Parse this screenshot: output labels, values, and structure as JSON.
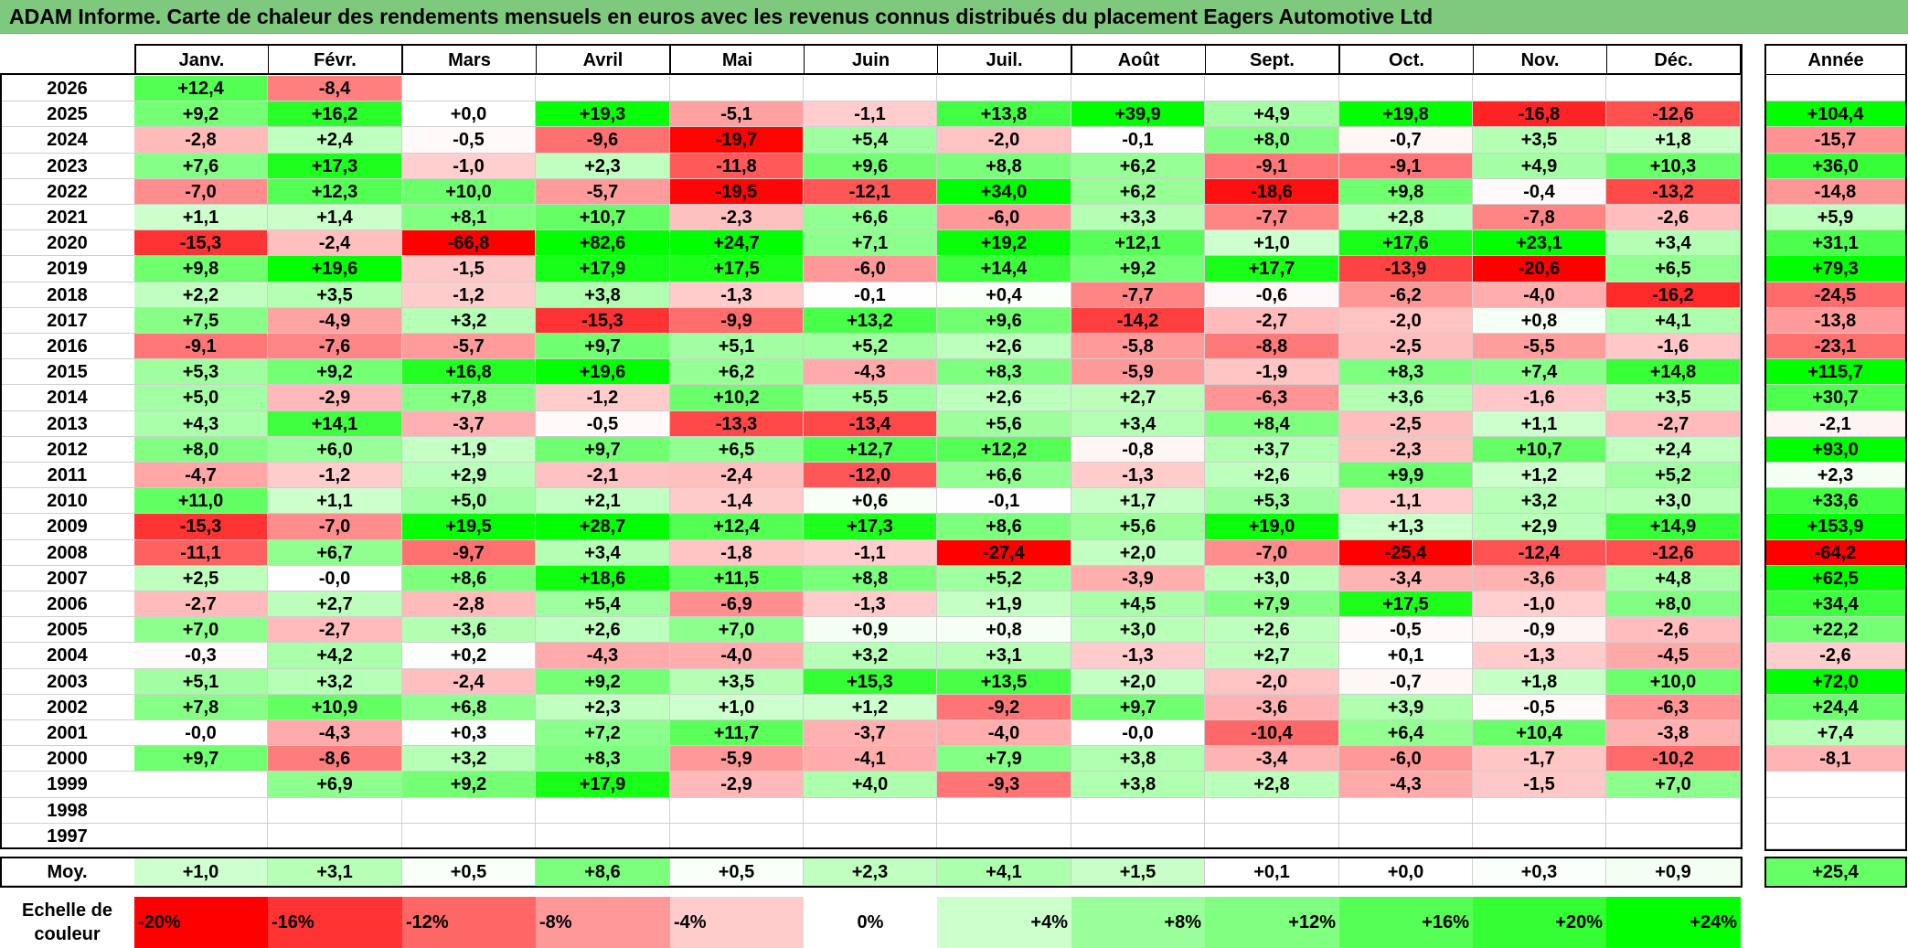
{
  "title": "ADAM Informe. Carte de chaleur des rendements mensuels en euros avec les revenus connus distribués du placement Eagers Automotive Ltd",
  "chart_data": {
    "type": "heatmap",
    "months": [
      "Janv.",
      "Févr.",
      "Mars",
      "Avril",
      "Mai",
      "Juin",
      "Juil.",
      "Août",
      "Sept.",
      "Oct.",
      "Nov.",
      "Déc."
    ],
    "year_header": "Année",
    "rows": [
      {
        "year": "2026",
        "values": [
          "+12,4",
          "-8,4",
          "",
          "",
          "",
          "",
          "",
          "",
          "",
          "",
          "",
          ""
        ],
        "annual": ""
      },
      {
        "year": "2025",
        "values": [
          "+9,2",
          "+16,2",
          "+0,0",
          "+19,3",
          "-5,1",
          "-1,1",
          "+13,8",
          "+39,9",
          "+4,9",
          "+19,8",
          "-16,8",
          "-12,6"
        ],
        "annual": "+104,4"
      },
      {
        "year": "2024",
        "values": [
          "-2,8",
          "+2,4",
          "-0,5",
          "-9,6",
          "-19,7",
          "+5,4",
          "-2,0",
          "-0,1",
          "+8,0",
          "-0,7",
          "+3,5",
          "+1,8"
        ],
        "annual": "-15,7"
      },
      {
        "year": "2023",
        "values": [
          "+7,6",
          "+17,3",
          "-1,0",
          "+2,3",
          "-11,8",
          "+9,6",
          "+8,8",
          "+6,2",
          "-9,1",
          "-9,1",
          "+4,9",
          "+10,3"
        ],
        "annual": "+36,0"
      },
      {
        "year": "2022",
        "values": [
          "-7,0",
          "+12,3",
          "+10,0",
          "-5,7",
          "-19,5",
          "-12,1",
          "+34,0",
          "+6,2",
          "-18,6",
          "+9,8",
          "-0,4",
          "-13,2"
        ],
        "annual": "-14,8"
      },
      {
        "year": "2021",
        "values": [
          "+1,1",
          "+1,4",
          "+8,1",
          "+10,7",
          "-2,3",
          "+6,6",
          "-6,0",
          "+3,3",
          "-7,7",
          "+2,8",
          "-7,8",
          "-2,6"
        ],
        "annual": "+5,9"
      },
      {
        "year": "2020",
        "values": [
          "-15,3",
          "-2,4",
          "-66,8",
          "+82,6",
          "+24,7",
          "+7,1",
          "+19,2",
          "+12,1",
          "+1,0",
          "+17,6",
          "+23,1",
          "+3,4"
        ],
        "annual": "+31,1"
      },
      {
        "year": "2019",
        "values": [
          "+9,8",
          "+19,6",
          "-1,5",
          "+17,9",
          "+17,5",
          "-6,0",
          "+14,4",
          "+9,2",
          "+17,7",
          "-13,9",
          "-20,6",
          "+6,5"
        ],
        "annual": "+79,3"
      },
      {
        "year": "2018",
        "values": [
          "+2,2",
          "+3,5",
          "-1,2",
          "+3,8",
          "-1,3",
          "-0,1",
          "+0,4",
          "-7,7",
          "-0,6",
          "-6,2",
          "-4,0",
          "-16,2"
        ],
        "annual": "-24,5"
      },
      {
        "year": "2017",
        "values": [
          "+7,5",
          "-4,9",
          "+3,2",
          "-15,3",
          "-9,9",
          "+13,2",
          "+9,6",
          "-14,2",
          "-2,7",
          "-2,0",
          "+0,8",
          "+4,1"
        ],
        "annual": "-13,8"
      },
      {
        "year": "2016",
        "values": [
          "-9,1",
          "-7,6",
          "-5,7",
          "+9,7",
          "+5,1",
          "+5,2",
          "+2,6",
          "-5,8",
          "-8,8",
          "-2,5",
          "-5,5",
          "-1,6"
        ],
        "annual": "-23,1"
      },
      {
        "year": "2015",
        "values": [
          "+5,3",
          "+9,2",
          "+16,8",
          "+19,6",
          "+6,2",
          "-4,3",
          "+8,3",
          "-5,9",
          "-1,9",
          "+8,3",
          "+7,4",
          "+14,8"
        ],
        "annual": "+115,7"
      },
      {
        "year": "2014",
        "values": [
          "+5,0",
          "-2,9",
          "+7,8",
          "-1,2",
          "+10,2",
          "+5,5",
          "+2,6",
          "+2,7",
          "-6,3",
          "+3,6",
          "-1,6",
          "+3,5"
        ],
        "annual": "+30,7"
      },
      {
        "year": "2013",
        "values": [
          "+4,3",
          "+14,1",
          "-3,7",
          "-0,5",
          "-13,3",
          "-13,4",
          "+5,6",
          "+3,4",
          "+8,4",
          "-2,5",
          "+1,1",
          "-2,7"
        ],
        "annual": "-2,1"
      },
      {
        "year": "2012",
        "values": [
          "+8,0",
          "+6,0",
          "+1,9",
          "+9,7",
          "+6,5",
          "+12,7",
          "+12,2",
          "-0,8",
          "+3,7",
          "-2,3",
          "+10,7",
          "+2,4"
        ],
        "annual": "+93,0"
      },
      {
        "year": "2011",
        "values": [
          "-4,7",
          "-1,2",
          "+2,9",
          "-2,1",
          "-2,4",
          "-12,0",
          "+6,6",
          "-1,3",
          "+2,6",
          "+9,9",
          "+1,2",
          "+5,2"
        ],
        "annual": "+2,3"
      },
      {
        "year": "2010",
        "values": [
          "+11,0",
          "+1,1",
          "+5,0",
          "+2,1",
          "-1,4",
          "+0,6",
          "-0,1",
          "+1,7",
          "+5,3",
          "-1,1",
          "+3,2",
          "+3,0"
        ],
        "annual": "+33,6"
      },
      {
        "year": "2009",
        "values": [
          "-15,3",
          "-7,0",
          "+19,5",
          "+28,7",
          "+12,4",
          "+17,3",
          "+8,6",
          "+5,6",
          "+19,0",
          "+1,3",
          "+2,9",
          "+14,9"
        ],
        "annual": "+153,9"
      },
      {
        "year": "2008",
        "values": [
          "-11,1",
          "+6,7",
          "-9,7",
          "+3,4",
          "-1,8",
          "-1,1",
          "-27,4",
          "+2,0",
          "-7,0",
          "-25,4",
          "-12,4",
          "-12,6"
        ],
        "annual": "-64,2"
      },
      {
        "year": "2007",
        "values": [
          "+2,5",
          "-0,0",
          "+8,6",
          "+18,6",
          "+11,5",
          "+8,8",
          "+5,2",
          "-3,9",
          "+3,0",
          "-3,4",
          "-3,6",
          "+4,8"
        ],
        "annual": "+62,5"
      },
      {
        "year": "2006",
        "values": [
          "-2,7",
          "+2,7",
          "-2,8",
          "+5,4",
          "-6,9",
          "-1,3",
          "+1,9",
          "+4,5",
          "+7,9",
          "+17,5",
          "-1,0",
          "+8,0"
        ],
        "annual": "+34,4"
      },
      {
        "year": "2005",
        "values": [
          "+7,0",
          "-2,7",
          "+3,6",
          "+2,6",
          "+7,0",
          "+0,9",
          "+0,8",
          "+3,0",
          "+2,6",
          "-0,5",
          "-0,9",
          "-2,6"
        ],
        "annual": "+22,2"
      },
      {
        "year": "2004",
        "values": [
          "-0,3",
          "+4,2",
          "+0,2",
          "-4,3",
          "-4,0",
          "+3,2",
          "+3,1",
          "-1,3",
          "+2,7",
          "+0,1",
          "-1,3",
          "-4,5"
        ],
        "annual": "-2,6"
      },
      {
        "year": "2003",
        "values": [
          "+5,1",
          "+3,2",
          "-2,4",
          "+9,2",
          "+3,5",
          "+15,3",
          "+13,5",
          "+2,0",
          "-2,0",
          "-0,7",
          "+1,8",
          "+10,0"
        ],
        "annual": "+72,0"
      },
      {
        "year": "2002",
        "values": [
          "+7,8",
          "+10,9",
          "+6,8",
          "+2,3",
          "+1,0",
          "+1,2",
          "-9,2",
          "+9,7",
          "-3,6",
          "+3,9",
          "-0,5",
          "-6,3"
        ],
        "annual": "+24,4"
      },
      {
        "year": "2001",
        "values": [
          "-0,0",
          "-4,3",
          "+0,3",
          "+7,2",
          "+11,7",
          "-3,7",
          "-4,0",
          "-0,0",
          "-10,4",
          "+6,4",
          "+10,4",
          "-3,8"
        ],
        "annual": "+7,4"
      },
      {
        "year": "2000",
        "values": [
          "+9,7",
          "-8,6",
          "+3,2",
          "+8,3",
          "-5,9",
          "-4,1",
          "+7,9",
          "+3,8",
          "-3,4",
          "-6,0",
          "-1,7",
          "-10,2"
        ],
        "annual": "-8,1"
      },
      {
        "year": "1999",
        "values": [
          "",
          "+6,9",
          "+9,2",
          "+17,9",
          "-2,9",
          "+4,0",
          "-9,3",
          "+3,8",
          "+2,8",
          "-4,3",
          "-1,5",
          "+7,0"
        ],
        "annual": ""
      },
      {
        "year": "1998",
        "values": [
          "",
          "",
          "",
          "",
          "",
          "",
          "",
          "",
          "",
          "",
          "",
          ""
        ],
        "annual": ""
      },
      {
        "year": "1997",
        "values": [
          "",
          "",
          "",
          "",
          "",
          "",
          "",
          "",
          "",
          "",
          "",
          ""
        ],
        "annual": ""
      }
    ],
    "average": {
      "label": "Moy.",
      "values": [
        "+1,0",
        "+3,1",
        "+0,5",
        "+8,6",
        "+0,5",
        "+2,3",
        "+4,1",
        "+1,5",
        "+0,1",
        "+0,0",
        "+0,3",
        "+0,9"
      ],
      "annual": "+25,4"
    },
    "scale": {
      "label_line1": "Echelle de",
      "label_line2": "couleur",
      "steps": [
        {
          "label": "-20%",
          "color": "#ff0000"
        },
        {
          "label": "-16%",
          "color": "#ff3333"
        },
        {
          "label": "-12%",
          "color": "#ff6666"
        },
        {
          "label": "-8%",
          "color": "#ff9999"
        },
        {
          "label": "-4%",
          "color": "#ffcccc"
        },
        {
          "label": "0%",
          "color": "#ffffff"
        },
        {
          "label": "+4%",
          "color": "#ccffcc"
        },
        {
          "label": "+8%",
          "color": "#99ff99"
        },
        {
          "label": "+12%",
          "color": "#80ff80"
        },
        {
          "label": "+16%",
          "color": "#55ff55"
        },
        {
          "label": "+20%",
          "color": "#33ff33"
        },
        {
          "label": "+24%",
          "color": "#00ff00"
        }
      ]
    },
    "colors": {
      "negative_max": "#ff0000",
      "positive_max": "#00ff00",
      "neutral": "#ffffff",
      "title_bg": "#7fc97f"
    }
  }
}
